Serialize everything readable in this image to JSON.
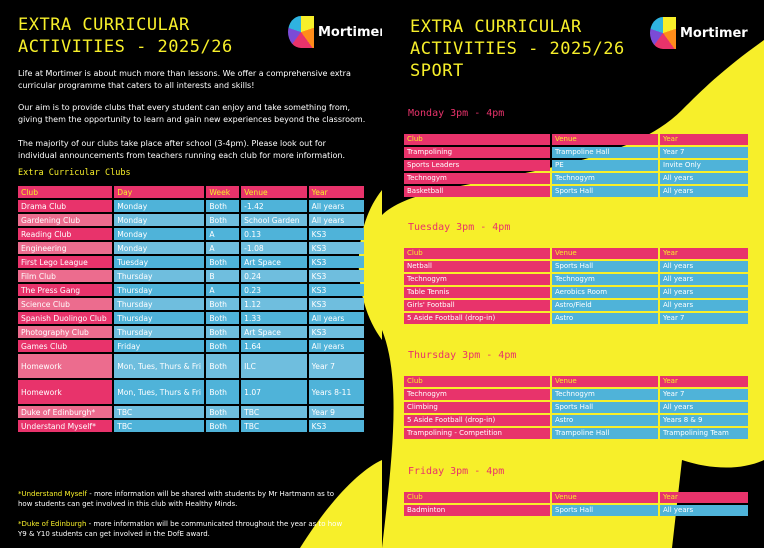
{
  "left": {
    "title_line1": "EXTRA CURRICULAR",
    "title_line2": "ACTIVITIES - 2025/26",
    "logo_text": "Mortimer",
    "intro1": "Life at Mortimer is about much more than lessons. We offer a comprehensive extra curricular programme that caters to all interests and skills!",
    "intro2": "Our aim is to provide clubs that every student can enjoy and take something from, giving them the opportunity to learn and gain new experiences beyond the classroom.",
    "intro3": "The majority of our clubs take place after school (3-4pm). Please look out for individual announcements from teachers running each club for more information.",
    "table_title": "Extra Curricular Clubs",
    "headers": [
      "Club",
      "Day",
      "Week",
      "Venue",
      "Year"
    ],
    "rows": [
      [
        "Drama Club",
        "Monday",
        "Both",
        "-1.42",
        "All years"
      ],
      [
        "Gardening Club",
        "Monday",
        "Both",
        "School Garden",
        "All years"
      ],
      [
        "Reading Club",
        "Monday",
        "A",
        "0.13",
        "KS3"
      ],
      [
        "Engineering",
        "Monday",
        "A",
        "-1.08",
        "KS3"
      ],
      [
        "First Lego League",
        "Tuesday",
        "Both",
        "Art Space",
        "KS3"
      ],
      [
        "Film Club",
        "Thursday",
        "B",
        "0.24",
        "KS3"
      ],
      [
        "The Press Gang",
        "Thursday",
        "A",
        "0.23",
        "KS3"
      ],
      [
        "Science Club",
        "Thursday",
        "Both",
        "1.12",
        "KS3"
      ],
      [
        "Spanish Duolingo Club",
        "Thursday",
        "Both",
        "1.33",
        "All years"
      ],
      [
        "Photography Club",
        "Thursday",
        "Both",
        "Art Space",
        "KS3"
      ],
      [
        "Games Club",
        "Friday",
        "Both",
        "1.64",
        "All years"
      ],
      [
        "Homework",
        "Mon, Tues, Thurs & Fri",
        "Both",
        "ILC",
        "Year 7"
      ],
      [
        "Homework",
        "Mon, Tues, Thurs & Fri",
        "Both",
        "1.07",
        "Years 8-11"
      ],
      [
        "Duke of Edinburgh*",
        "TBC",
        "Both",
        "TBC",
        "Year 9"
      ],
      [
        "Understand Myself*",
        "TBC",
        "Both",
        "TBC",
        "KS3"
      ]
    ],
    "foot1_label": "*Understand Myself",
    "foot1_text": " - more information will be shared with students by Mr Hartmann as to how students can get involved in this club with Healthy Minds.",
    "foot2_label": "*Duke of Edinburgh",
    "foot2_text": " - more information will be communicated throughout the year as to how Y9 & Y10 students can get involved in the DofE award."
  },
  "right": {
    "title_line1": "EXTRA CURRICULAR",
    "title_line2": "ACTIVITIES - 2025/26",
    "title_line3": "SPORT",
    "logo_text": "Mortimer",
    "headers": [
      "Club",
      "Venue",
      "Year"
    ],
    "days": [
      {
        "label": "Monday 3pm - 4pm",
        "rows": [
          [
            "Trampolining",
            "Trampoline Hall",
            "Year 7"
          ],
          [
            "Sports Leaders",
            "PE",
            "Invite Only"
          ],
          [
            "Technogym",
            "Technogym",
            "All years"
          ],
          [
            "Basketball",
            "Sports Hall",
            "All years"
          ]
        ]
      },
      {
        "label": "Tuesday 3pm - 4pm",
        "rows": [
          [
            "Netball",
            "Sports Hall",
            "All years"
          ],
          [
            "Technogym",
            "Technogym",
            "All years"
          ],
          [
            "Table Tennis",
            "Aerobics Room",
            "All years"
          ],
          [
            "Girls' Football",
            "Astro/Field",
            "All years"
          ],
          [
            "5 Aside Football (drop-in)",
            "Astro",
            "Year 7"
          ]
        ]
      },
      {
        "label": "Thursday 3pm - 4pm",
        "rows": [
          [
            "Technogym",
            "Technogym",
            "Year 7"
          ],
          [
            "Climbing",
            "Sports Hall",
            "All years"
          ],
          [
            "5 Aside Football (drop-in)",
            "Astro",
            "Years 8 & 9"
          ],
          [
            "Trampolining - Competition",
            "Trampoline Hall",
            "Trampolining Team"
          ]
        ]
      },
      {
        "label": "Friday 3pm - 4pm",
        "rows": [
          [
            "Badminton",
            "Sports Hall",
            "All years"
          ]
        ]
      }
    ]
  },
  "colors": {
    "yellow": "#f7ef2a",
    "pink": "#e8336b",
    "blue": "#4fb3d9",
    "black": "#000000"
  }
}
